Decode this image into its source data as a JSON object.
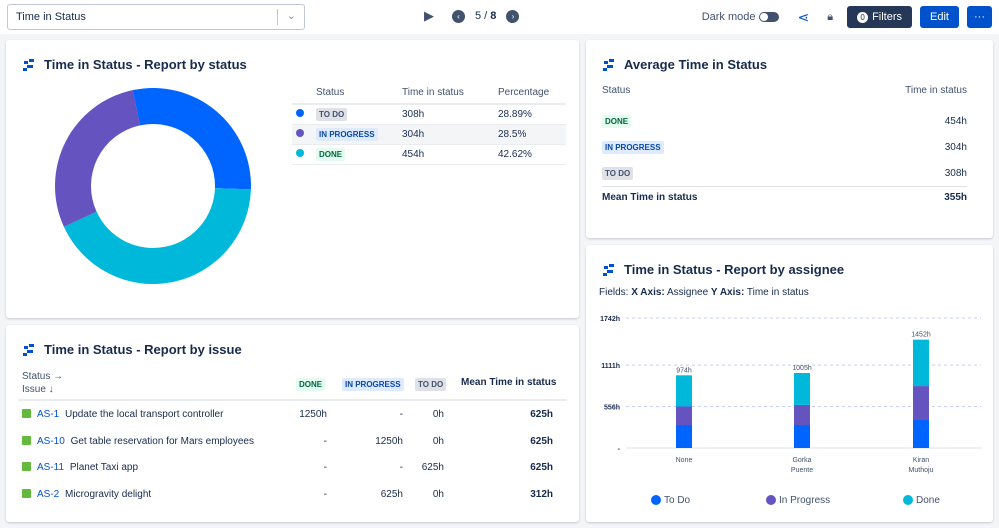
{
  "topbar": {
    "report_select": "Time in Status",
    "page": "5",
    "total": "8",
    "dark_mode_label": "Dark mode",
    "filters_count": "0",
    "filters_label": "Filters",
    "edit_label": "Edit",
    "more_label": "···"
  },
  "colors": {
    "todo": "#0065ff",
    "in_progress": "#6554c0",
    "done": "#00b8d9",
    "primary": "#0052cc",
    "dark": "#253858"
  },
  "by_status": {
    "title": "Time in Status - Report by status",
    "headers": [
      "Status",
      "Time in status",
      "Percentage"
    ],
    "rows": [
      {
        "status": "TO DO",
        "time": "308h",
        "pct": "28.89%",
        "value": 28.89
      },
      {
        "status": "IN PROGRESS",
        "time": "304h",
        "pct": "28.5%",
        "value": 28.5
      },
      {
        "status": "DONE",
        "time": "454h",
        "pct": "42.62%",
        "value": 42.62
      }
    ]
  },
  "average": {
    "title": "Average Time in Status",
    "headers": [
      "Status",
      "Time in status"
    ],
    "rows": [
      {
        "status": "DONE",
        "time": "454h"
      },
      {
        "status": "IN PROGRESS",
        "time": "304h"
      },
      {
        "status": "TO DO",
        "time": "308h"
      }
    ],
    "mean_label": "Mean Time in status",
    "mean_value": "355h"
  },
  "by_issue": {
    "title": "Time in Status - Report by issue",
    "status_label": "Status →",
    "issue_label": "Issue ↓",
    "headers": [
      "DONE",
      "IN PROGRESS",
      "TO DO",
      "Mean Time in status"
    ],
    "rows": [
      {
        "key": "AS-1",
        "summary": "Update the local transport controller",
        "done": "1250h",
        "ip": "-",
        "todo": "0h",
        "mean": "625h"
      },
      {
        "key": "AS-10",
        "summary": "Get table reservation for Mars employees",
        "done": "-",
        "ip": "1250h",
        "todo": "0h",
        "mean": "625h"
      },
      {
        "key": "AS-11",
        "summary": "Planet Taxi app",
        "done": "-",
        "ip": "-",
        "todo": "625h",
        "mean": "625h"
      },
      {
        "key": "AS-2",
        "summary": "Microgravity delight",
        "done": "-",
        "ip": "625h",
        "todo": "0h",
        "mean": "312h"
      }
    ]
  },
  "by_assignee": {
    "title": "Time in Status - Report by assignee",
    "fields_label": "Fields:",
    "x_label": "X Axis:",
    "x_value": "Assignee",
    "y_label": "Y Axis:",
    "y_value": "Time in status"
  },
  "chart_data": {
    "type": "bar",
    "stacked": true,
    "categories": [
      [
        "None"
      ],
      [
        "Gorka",
        "Puente"
      ],
      [
        "Kiran",
        "Muthoju"
      ]
    ],
    "series": [
      {
        "name": "To Do",
        "values": [
          308,
          308,
          375
        ]
      },
      {
        "name": "In Progress",
        "values": [
          248,
          270,
          455
        ]
      },
      {
        "name": "Done",
        "values": [
          418,
          427,
          622
        ]
      }
    ],
    "totals": [
      "974h",
      "1005h",
      "1452h"
    ],
    "yticks": [
      "-",
      "556h",
      "1111h",
      "1742h"
    ],
    "ytick_values": [
      0,
      556,
      1111,
      1742
    ],
    "ylim": [
      0,
      1742
    ],
    "grid": true,
    "legend": "bottom"
  }
}
